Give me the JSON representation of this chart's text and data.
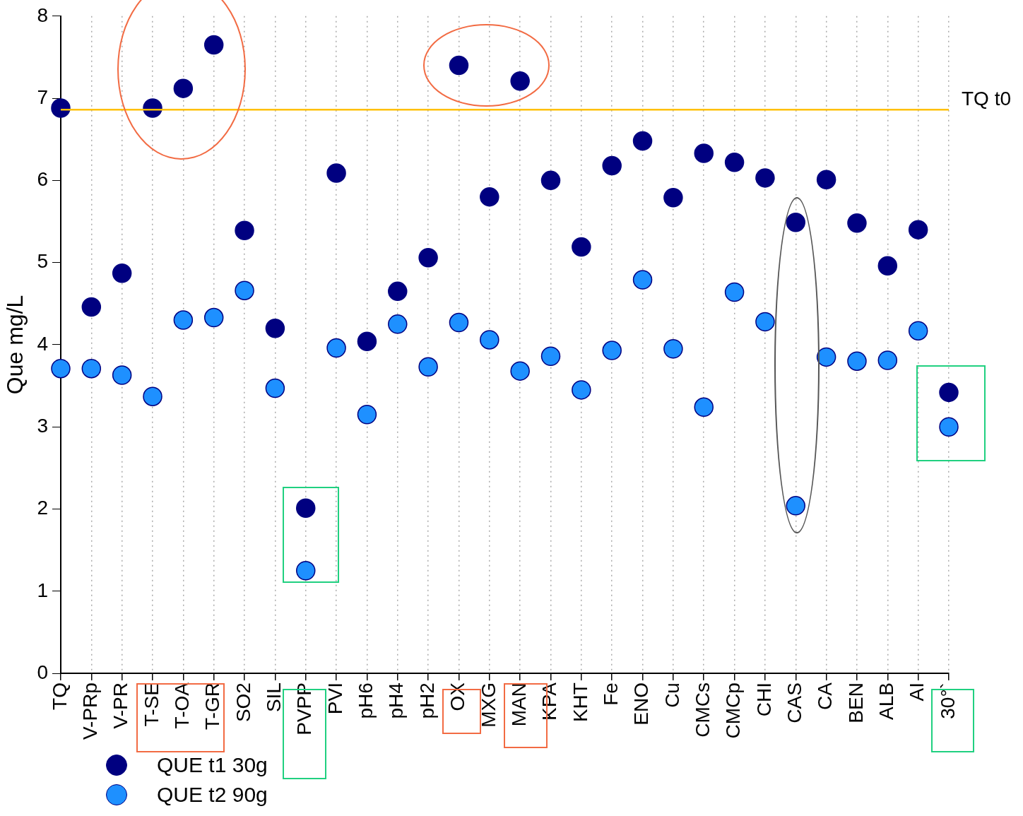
{
  "chart_data": {
    "type": "scatter",
    "ylabel": "Que mg/L",
    "categories": [
      "TQ",
      "V-PRp",
      "V-PR",
      "T-SE",
      "T-OA",
      "T-GR",
      "SO2",
      "SIL",
      "PVPP",
      "PVI",
      "pH6",
      "pH4",
      "pH2",
      "OX",
      "MXG",
      "MAN",
      "KPA",
      "KHT",
      "Fe",
      "ENO",
      "Cu",
      "CMCs",
      "CMCp",
      "CHI",
      "CAS",
      "CA",
      "BEN",
      "ALB",
      "AI",
      "30°`"
    ],
    "series": [
      {
        "name": "QUE t1 30g",
        "color": "#000080",
        "values": [
          6.88,
          4.46,
          4.87,
          6.88,
          7.12,
          7.65,
          5.39,
          4.2,
          2.01,
          6.09,
          4.04,
          4.65,
          5.06,
          7.4,
          5.8,
          7.21,
          6.0,
          5.19,
          6.18,
          6.48,
          5.79,
          6.33,
          6.22,
          6.03,
          5.49,
          6.01,
          5.48,
          4.96,
          5.4,
          3.42
        ]
      },
      {
        "name": "QUE t2 90g",
        "color": "#1e90ff",
        "values": [
          3.71,
          3.71,
          3.63,
          3.37,
          4.3,
          4.33,
          4.66,
          3.47,
          1.25,
          3.96,
          3.15,
          4.25,
          3.73,
          4.27,
          4.06,
          3.68,
          3.86,
          3.45,
          3.93,
          4.79,
          3.95,
          3.24,
          4.64,
          4.28,
          2.04,
          3.85,
          3.8,
          3.81,
          4.17,
          3.0
        ]
      }
    ],
    "ylim": [
      0,
      8
    ],
    "yticks": [
      0,
      1,
      2,
      3,
      4,
      5,
      6,
      7,
      8
    ],
    "grid": "x",
    "legend": "bottom left",
    "marker": "circle",
    "ref_lines": [
      {
        "axis": "y",
        "value": 6.86,
        "label": "TQ t0",
        "color": "#ffc000"
      }
    ]
  }
}
